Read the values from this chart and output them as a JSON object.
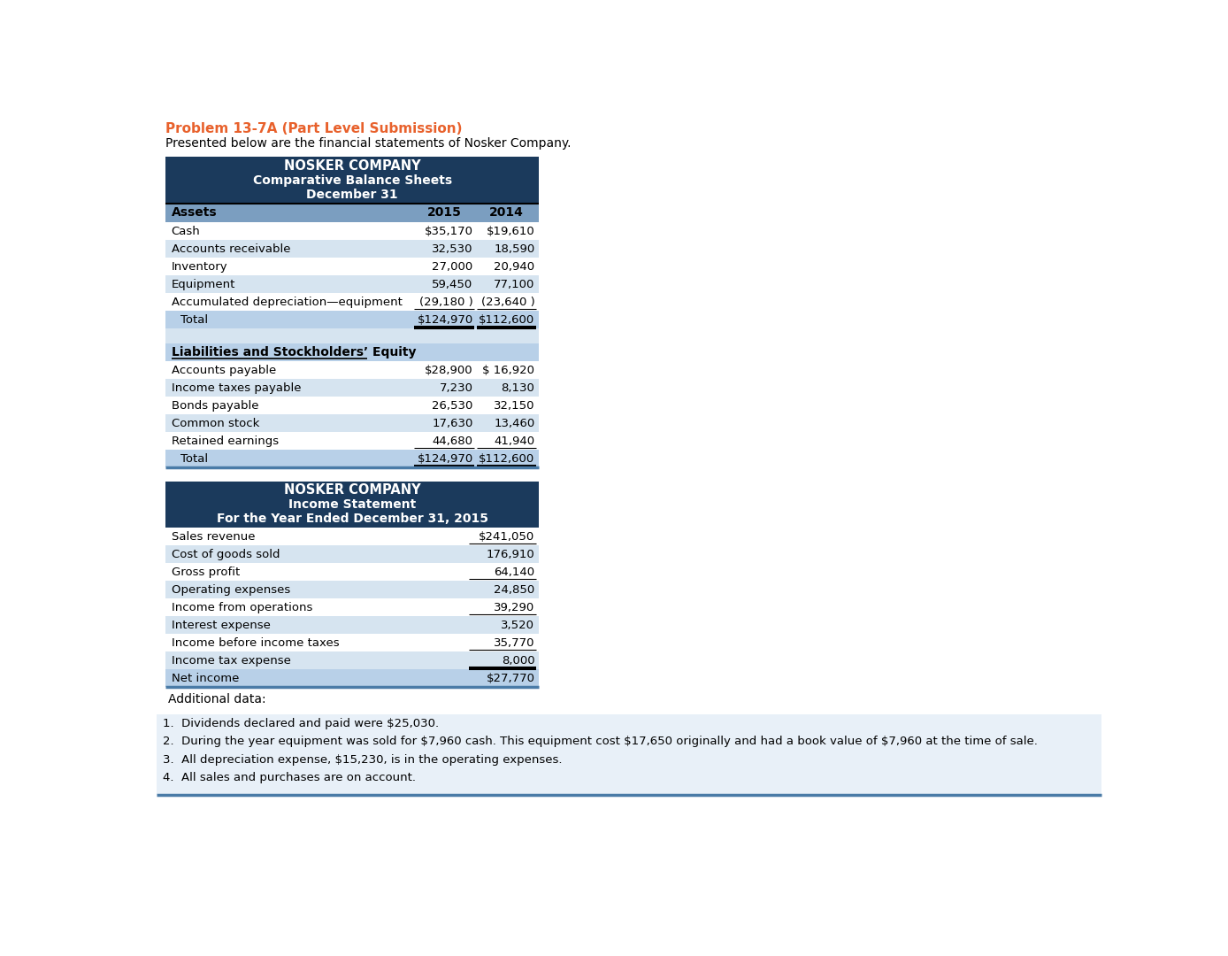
{
  "title_color": "#E8612C",
  "title_text": "Problem 13-7A (Part Level Submission)",
  "subtitle_text": "Presented below are the financial statements of Nosker Company.",
  "header_bg": "#1B3A5C",
  "header_text_color": "#FFFFFF",
  "subheader_bg": "#7B9EC0",
  "row_bg_light": "#D6E4F0",
  "row_bg_white": "#FFFFFF",
  "total_row_bg": "#B8D0E8",
  "section_header_bg": "#B8D0E8",
  "additional_data_bg": "#E8F0F8",
  "bottom_border_color": "#4A7BA7",
  "text_color": "#000000",
  "balance_sheet": {
    "title_lines": [
      "NOSKER COMPANY",
      "Comparative Balance Sheets",
      "December 31"
    ],
    "assets": [
      [
        "Cash",
        "$35,170",
        "$19,610"
      ],
      [
        "Accounts receivable",
        "32,530",
        "18,590"
      ],
      [
        "Inventory",
        "27,000",
        "20,940"
      ],
      [
        "Equipment",
        "59,450",
        "77,100"
      ],
      [
        "Accumulated depreciation—equipment",
        "(29,180 )",
        "(23,640 )"
      ],
      [
        "  Total",
        "$124,970",
        "$112,600"
      ]
    ],
    "liabilities_header": "Liabilities and Stockholders’ Equity",
    "liabilities": [
      [
        "Accounts payable",
        "$28,900",
        "$ 16,920"
      ],
      [
        "Income taxes payable",
        "7,230",
        "8,130"
      ],
      [
        "Bonds payable",
        "26,530",
        "32,150"
      ],
      [
        "Common stock",
        "17,630",
        "13,460"
      ],
      [
        "Retained earnings",
        "44,680",
        "41,940"
      ],
      [
        "  Total",
        "$124,970",
        "$112,600"
      ]
    ]
  },
  "income_statement": {
    "title_lines": [
      "NOSKER COMPANY",
      "Income Statement",
      "For the Year Ended December 31, 2015"
    ],
    "rows": [
      [
        "Sales revenue",
        "$241,050"
      ],
      [
        "Cost of goods sold",
        "176,910"
      ],
      [
        "Gross profit",
        "64,140"
      ],
      [
        "Operating expenses",
        "24,850"
      ],
      [
        "Income from operations",
        "39,290"
      ],
      [
        "Interest expense",
        "3,520"
      ],
      [
        "Income before income taxes",
        "35,770"
      ],
      [
        "Income tax expense",
        "8,000"
      ],
      [
        "Net income",
        "$27,770"
      ]
    ],
    "underline_after": [
      1,
      3,
      5,
      7
    ],
    "double_underline": [
      8
    ]
  },
  "additional_data_label": "Additional data:",
  "additional_data": [
    "1.  Dividends declared and paid were $25,030.",
    "2.  During the year equipment was sold for $7,960 cash. This equipment cost $17,650 originally and had a book value of $7,960 at the time of sale.",
    "3.  All depreciation expense, $15,230, is in the operating expenses.",
    "4.  All sales and purchases are on account."
  ]
}
